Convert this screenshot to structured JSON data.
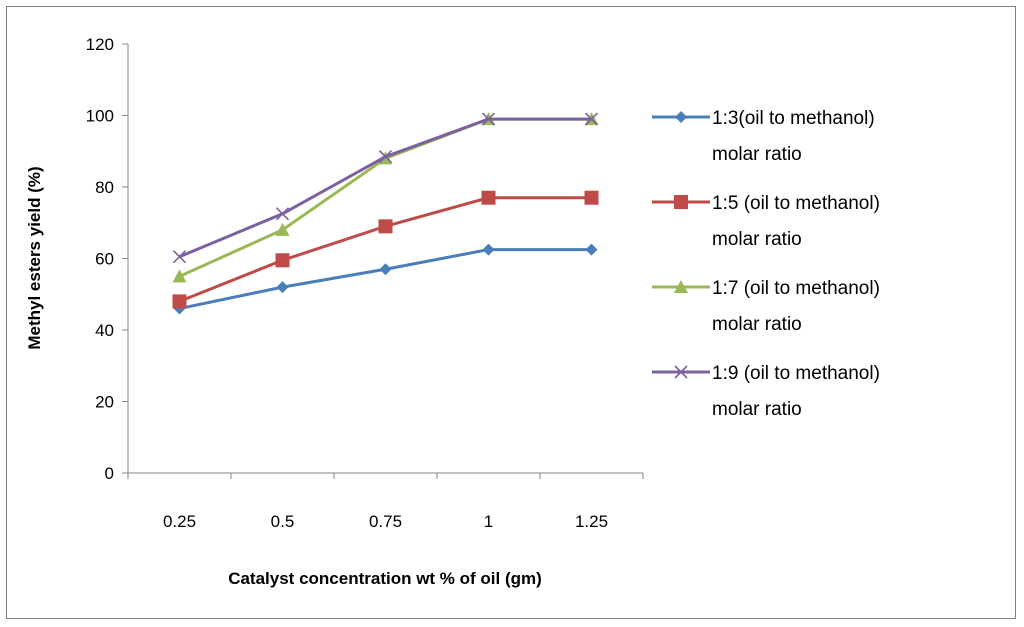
{
  "chart_data": {
    "type": "line",
    "title": "",
    "xlabel": "Catalyst concentration  wt % of oil (gm)",
    "ylabel": "Methyl esters yield  (%)",
    "categories": [
      "0.25",
      "0.5",
      "0.75",
      "1",
      "1.25"
    ],
    "ylim": [
      0,
      120
    ],
    "yticks": [
      "0",
      "20",
      "40",
      "60",
      "80",
      "100",
      "120"
    ],
    "legend_position": "right",
    "grid": false,
    "series": [
      {
        "name": "1:3(oil to methanol) molar ratio",
        "line1": "1:3(oil to methanol)",
        "line2": "molar ratio",
        "color": "#4a7ebb",
        "marker": "diamond",
        "values": [
          46,
          52,
          57,
          62.5,
          62.5
        ]
      },
      {
        "name": "1:5 (oil to methanol) molar ratio",
        "line1": "1:5 (oil to methanol)",
        "line2": "molar ratio",
        "color": "#be4b48",
        "marker": "square",
        "values": [
          48,
          59.5,
          69,
          77,
          77
        ]
      },
      {
        "name": "1:7 (oil to methanol) molar ratio",
        "line1": "1:7 (oil to methanol)",
        "line2": "molar ratio",
        "color": "#98b954",
        "marker": "triangle",
        "values": [
          55,
          68,
          88,
          99,
          99
        ]
      },
      {
        "name": "1:9 (oil to methanol) molar ratio",
        "line1": "1:9 (oil to methanol)",
        "line2": "molar ratio",
        "color": "#7d60a0",
        "marker": "x",
        "values": [
          60.5,
          72.5,
          88.5,
          99,
          99
        ]
      }
    ]
  }
}
